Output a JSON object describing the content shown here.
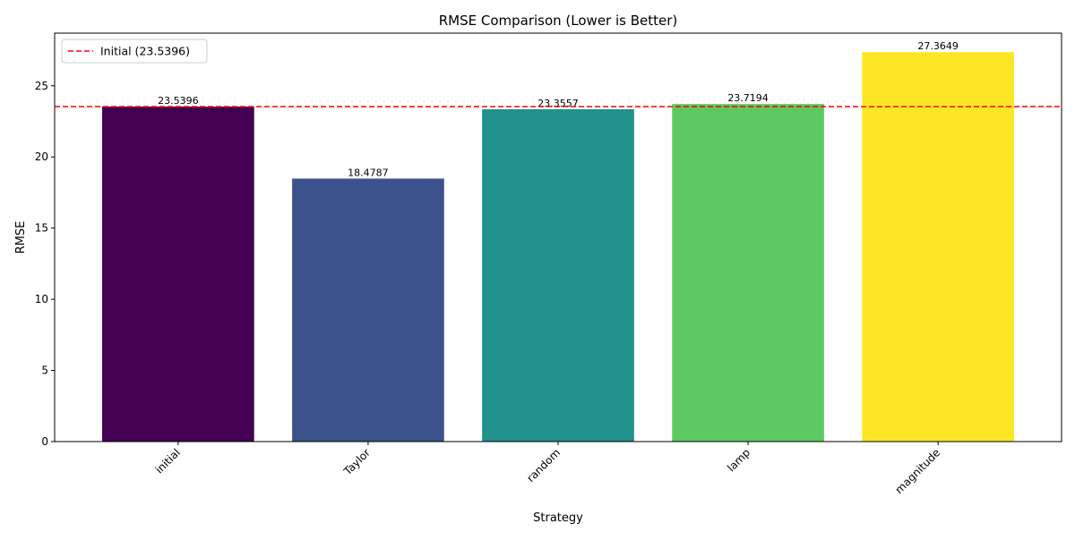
{
  "chart_data": {
    "type": "bar",
    "title": "RMSE Comparison (Lower is Better)",
    "xlabel": "Strategy",
    "ylabel": "RMSE",
    "categories": [
      "initial",
      "Taylor",
      "random",
      "lamp",
      "magnitude"
    ],
    "values": [
      23.5396,
      18.4787,
      23.3557,
      23.7194,
      27.3649
    ],
    "value_labels": [
      "23.5396",
      "18.4787",
      "23.3557",
      "23.7194",
      "27.3649"
    ],
    "bar_colors": [
      "#440154",
      "#3b528b",
      "#21918c",
      "#5ec962",
      "#fde725"
    ],
    "ylim": [
      0,
      28.7
    ],
    "yticks": [
      0,
      5,
      10,
      15,
      20,
      25
    ],
    "ytick_labels": [
      "0",
      "5",
      "10",
      "15",
      "20",
      "25"
    ],
    "grid": false,
    "reference_line": {
      "value": 23.5396,
      "label": "Initial (23.5396)",
      "color": "#ff0000",
      "style": "dashed"
    },
    "legend": {
      "position": "top-left",
      "entries": [
        "Initial (23.5396)"
      ]
    }
  }
}
